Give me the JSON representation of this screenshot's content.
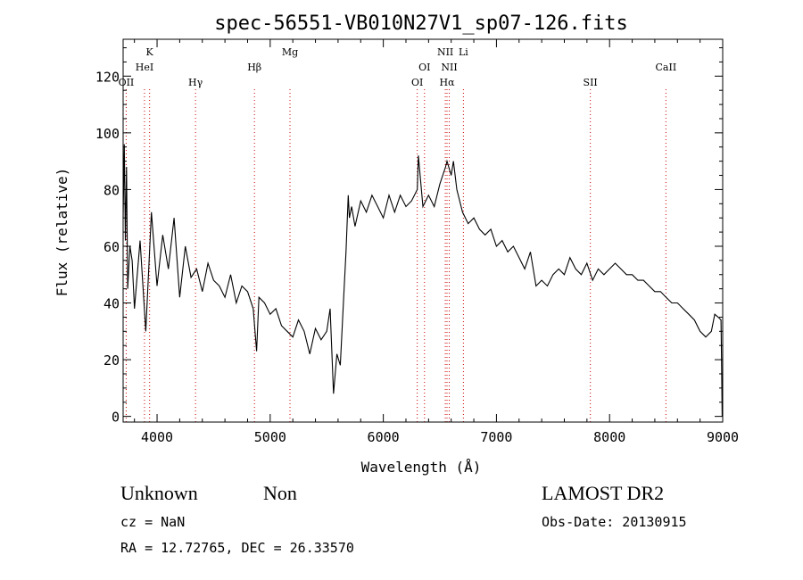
{
  "chart_data": {
    "type": "line",
    "title": "spec-56551-VB010N27V1_sp07-126.fits",
    "xlabel": "Wavelength (Å)",
    "ylabel": "Flux (relative)",
    "xlim": [
      3700,
      9000
    ],
    "ylim": [
      -2,
      133
    ],
    "x_ticks": [
      4000,
      5000,
      6000,
      7000,
      8000,
      9000
    ],
    "y_ticks": [
      0,
      20,
      40,
      60,
      80,
      100,
      120
    ],
    "x_tick_labels": [
      "4000",
      "5000",
      "6000",
      "7000",
      "8000",
      "9000"
    ],
    "y_tick_labels": [
      "0",
      "20",
      "40",
      "60",
      "80",
      "100",
      "120"
    ],
    "grid": false,
    "legend": "none",
    "line_color": "#000000",
    "marker_color": "#cc0000",
    "series": [
      {
        "x": [
          3700,
          3710,
          3720,
          3730,
          3740,
          3760,
          3780,
          3800,
          3850,
          3900,
          3950,
          4000,
          4050,
          4100,
          4150,
          4200,
          4250,
          4300,
          4350,
          4400,
          4450,
          4500,
          4550,
          4600,
          4650,
          4700,
          4750,
          4800,
          4850,
          4880,
          4900,
          4950,
          5000,
          5050,
          5100,
          5150,
          5200,
          5250,
          5300,
          5350,
          5400,
          5450,
          5500,
          5530,
          5560,
          5590,
          5620,
          5650,
          5670,
          5690,
          5700,
          5720,
          5750,
          5800,
          5850,
          5900,
          5950,
          6000,
          6050,
          6100,
          6150,
          6200,
          6250,
          6300,
          6310,
          6350,
          6400,
          6450,
          6500,
          6550,
          6563,
          6600,
          6620,
          6650,
          6700,
          6750,
          6800,
          6850,
          6900,
          6950,
          7000,
          7050,
          7100,
          7150,
          7200,
          7250,
          7300,
          7350,
          7400,
          7450,
          7500,
          7550,
          7600,
          7650,
          7700,
          7750,
          7800,
          7850,
          7900,
          7950,
          8000,
          8050,
          8100,
          8150,
          8200,
          8250,
          8300,
          8350,
          8400,
          8450,
          8500,
          8550,
          8600,
          8650,
          8700,
          8750,
          8800,
          8850,
          8900,
          8930,
          8960,
          8985,
          8990,
          8995,
          9000
        ],
        "y": [
          70,
          96,
          62,
          88,
          45,
          60,
          55,
          38,
          62,
          30,
          72,
          46,
          64,
          52,
          70,
          42,
          60,
          49,
          52,
          44,
          54,
          48,
          46,
          42,
          50,
          40,
          46,
          44,
          38,
          23,
          42,
          40,
          36,
          38,
          32,
          30,
          28,
          34,
          30,
          22,
          31,
          27,
          30,
          38,
          8,
          22,
          18,
          42,
          58,
          78,
          70,
          74,
          67,
          76,
          72,
          78,
          74,
          70,
          78,
          72,
          78,
          74,
          76,
          80,
          92,
          74,
          78,
          74,
          82,
          88,
          90,
          85,
          90,
          80,
          72,
          68,
          70,
          66,
          64,
          66,
          60,
          62,
          58,
          60,
          56,
          52,
          58,
          46,
          48,
          46,
          50,
          52,
          50,
          56,
          52,
          50,
          54,
          48,
          52,
          50,
          52,
          54,
          52,
          50,
          50,
          48,
          48,
          46,
          44,
          44,
          42,
          40,
          40,
          38,
          36,
          34,
          30,
          28,
          30,
          36,
          35,
          34,
          20,
          0,
          0
        ]
      }
    ],
    "lines": [
      {
        "label": "OII",
        "x": 3727,
        "row": 3
      },
      {
        "label": "K",
        "x": 3934,
        "row": 0
      },
      {
        "label": "HeI",
        "x": 3889,
        "row": 1
      },
      {
        "label": "Hγ",
        "x": 4340,
        "row": 2
      },
      {
        "label": "Hβ",
        "x": 4861,
        "row": 1
      },
      {
        "label": "Mg",
        "x": 5175,
        "row": 0
      },
      {
        "label": "OI",
        "x": 6300,
        "row": 2
      },
      {
        "label": "OI",
        "x": 6364,
        "row": 1
      },
      {
        "label": "NII",
        "x": 6548,
        "row": 0
      },
      {
        "label": "NII",
        "x": 6583,
        "row": 1
      },
      {
        "label": "Hα",
        "x": 6563,
        "row": 2
      },
      {
        "label": "Li",
        "x": 6708,
        "row": 0
      },
      {
        "label": "SII",
        "x": 7830,
        "row": 2
      },
      {
        "label": "CaII",
        "x": 8498,
        "row": 1
      }
    ]
  },
  "info": {
    "classification": "Unknown",
    "subclass": "Non",
    "survey": "LAMOST DR2",
    "cz": "cz = NaN",
    "obs_date": "Obs-Date: 20130915",
    "coords": "RA =  12.72765, DEC =  26.33570"
  }
}
